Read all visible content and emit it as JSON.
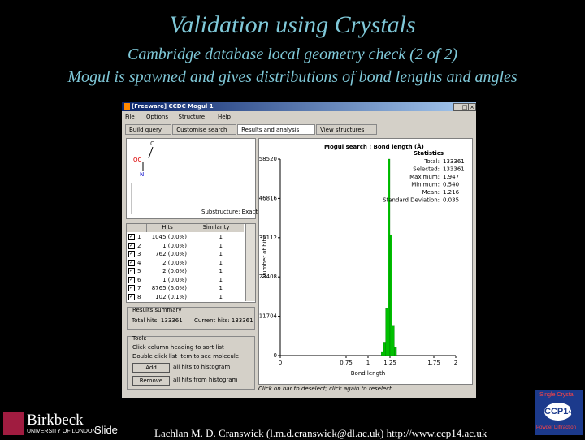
{
  "slide": {
    "title": "Validation using Crystals",
    "subtitle": "Cambridge database local geometry check (2 of 2)",
    "subtitle2": "Mogul is spawned and gives distributions of bond lengths and angles"
  },
  "window": {
    "title": "[Freeware] CCDC Mogul 1",
    "menu": [
      "File",
      "Options",
      "Structure",
      "Help"
    ],
    "tabs": [
      "Build query",
      "Customise search",
      "Results and analysis",
      "View structures"
    ],
    "query": {
      "atoms": [
        "C",
        "OC",
        "N"
      ],
      "substructure": "Substructure: Exact"
    },
    "table": {
      "header": [
        "Hits",
        "Similarity"
      ],
      "rows": [
        [
          "1",
          "1045 (0.0%)",
          "1"
        ],
        [
          "2",
          "1 (0.0%)",
          "1"
        ],
        [
          "3",
          "762 (0.0%)",
          "1"
        ],
        [
          "4",
          "2 (0.0%)",
          "1"
        ],
        [
          "5",
          "2 (0.0%)",
          "1"
        ],
        [
          "6",
          "1 (0.0%)",
          "1"
        ],
        [
          "7",
          "8765 (6.0%)",
          "1"
        ],
        [
          "8",
          "102 (0.1%)",
          "1"
        ]
      ]
    },
    "summary": {
      "title": "Results summary",
      "total": "Total hits: 133361",
      "current": "Current hits: 133361"
    },
    "tools": {
      "title": "Tools",
      "hints": [
        "Click column heading to sort list",
        "Double click list item to see molecule"
      ],
      "add": {
        "button": "Add",
        "caption": "all hits to histogram"
      },
      "remove": {
        "button": "Remove",
        "caption": "all hits from histogram"
      }
    },
    "histogram": {
      "title": "Mogul search : Bond length (Å)",
      "xlabel": "Bond length",
      "ylabel": "Number of hits",
      "color": "#00c000",
      "bins": [
        1.15,
        1.175,
        1.2,
        1.225,
        1.25,
        1.275,
        1.3,
        1.325
      ],
      "counts": [
        1200,
        4000,
        14000,
        58520,
        36000,
        9000,
        2500
      ],
      "xlim": [
        0,
        2
      ],
      "xticks": [
        0,
        0.75,
        1,
        1.25,
        1.75,
        2
      ],
      "ylim": [
        0,
        58520
      ],
      "yticks": [
        0,
        11704,
        23408,
        35112,
        46816,
        58520
      ],
      "statistics": {
        "title": "Statistics",
        "rows": [
          [
            "Total:",
            "133361"
          ],
          [
            "Selected:",
            "133361"
          ],
          [
            "Maximum:",
            "1.947"
          ],
          [
            "Minimum:",
            "0.540"
          ],
          [
            "Mean:",
            "1.216"
          ],
          [
            "Standard Deviation:",
            "0.035"
          ]
        ]
      },
      "hint": "Click on bar to deselect; click again to reselect."
    }
  },
  "footer": {
    "university": "Birkbeck",
    "university_sub": "UNIVERSITY OF LONDON",
    "slide": "Slide",
    "credit": "Lachlan M. D. Cranswick (l.m.d.cranswick@dl.ac.uk) http://www.ccp14.ac.uk",
    "logo": [
      "Single Crystal",
      "CCP14",
      "Powder Diffraction"
    ]
  }
}
